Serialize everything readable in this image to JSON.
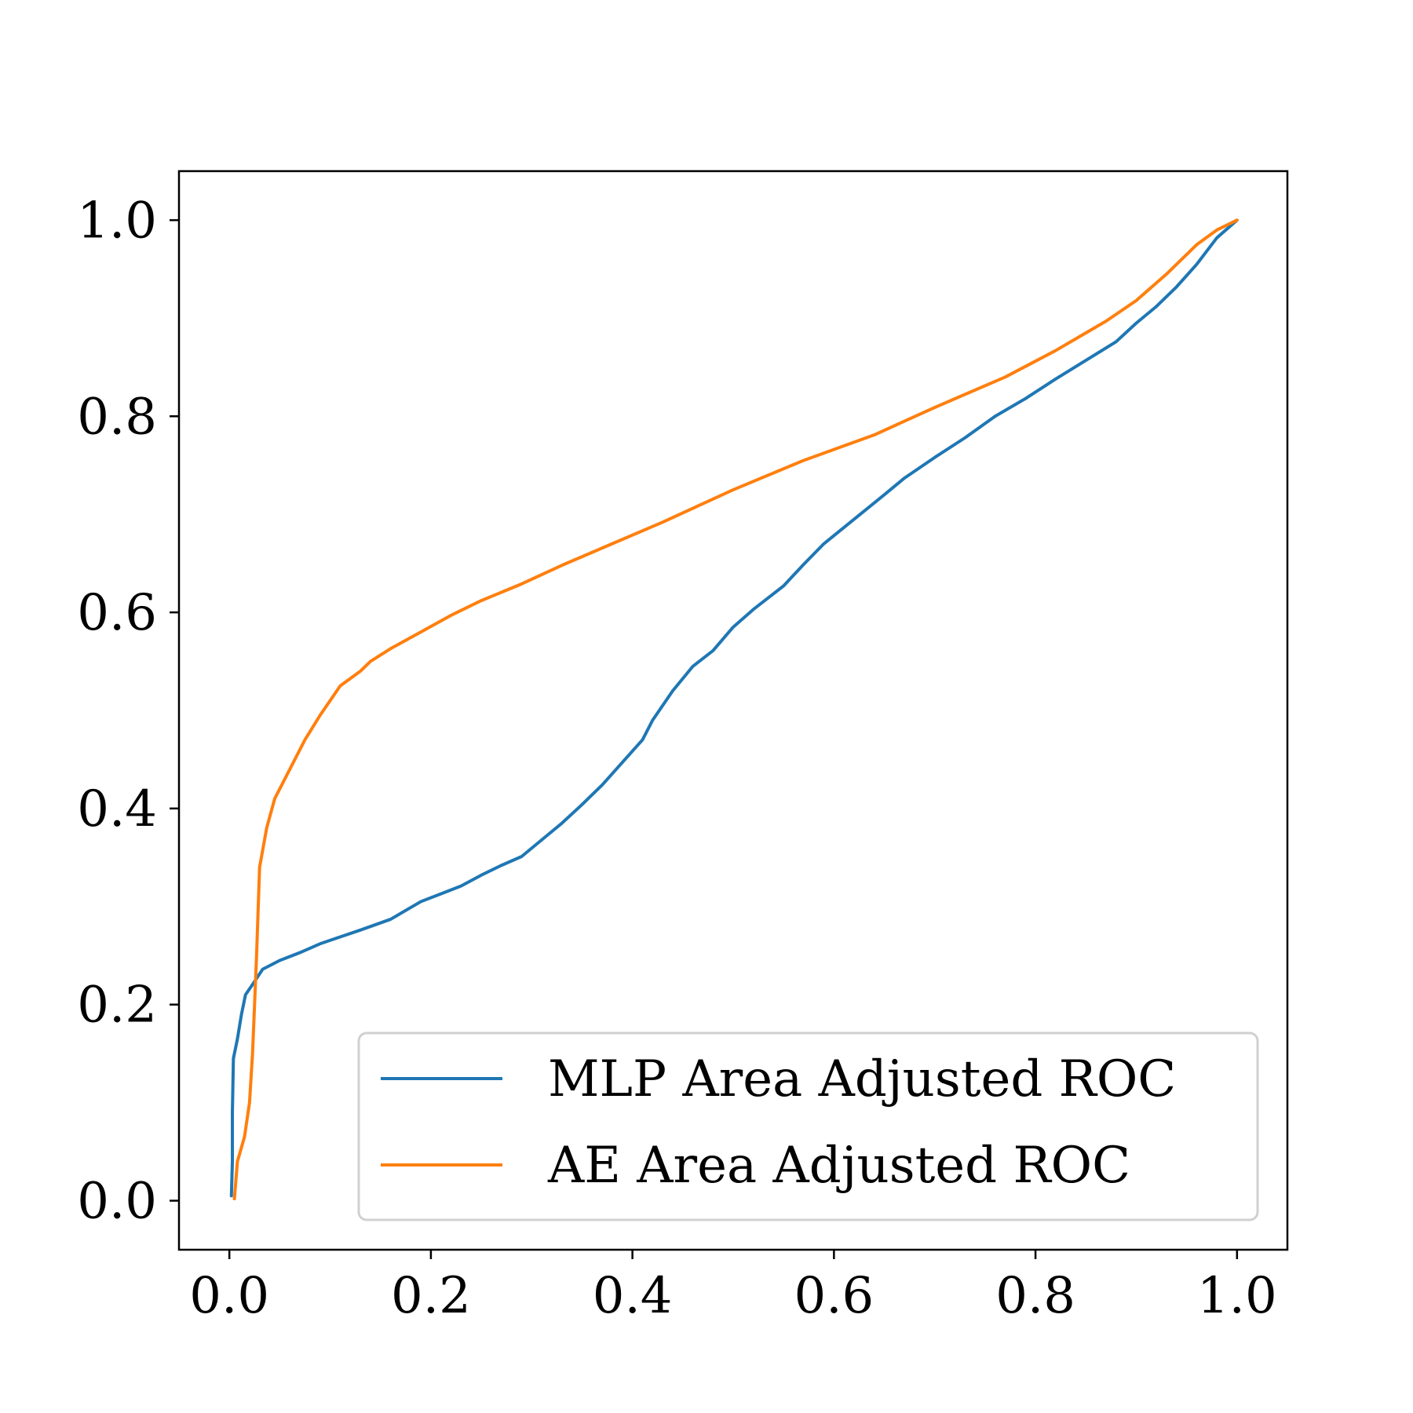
{
  "chart_data": {
    "type": "line",
    "title": "",
    "xlabel": "",
    "ylabel": "",
    "xlim": [
      -0.05,
      1.05
    ],
    "ylim": [
      -0.05,
      1.05
    ],
    "x_ticks": [
      "0.0",
      "0.2",
      "0.4",
      "0.6",
      "0.8",
      "1.0"
    ],
    "y_ticks": [
      "0.0",
      "0.2",
      "0.4",
      "0.6",
      "0.8",
      "1.0"
    ],
    "grid": false,
    "legend_position": "lower-right",
    "series": [
      {
        "name": "MLP Area Adjusted ROC",
        "color": "#1f77b4",
        "points": [
          [
            0.002,
            0.005
          ],
          [
            0.003,
            0.04
          ],
          [
            0.003,
            0.09
          ],
          [
            0.004,
            0.145
          ],
          [
            0.008,
            0.165
          ],
          [
            0.012,
            0.19
          ],
          [
            0.016,
            0.21
          ],
          [
            0.024,
            0.222
          ],
          [
            0.033,
            0.236
          ],
          [
            0.05,
            0.245
          ],
          [
            0.07,
            0.253
          ],
          [
            0.09,
            0.262
          ],
          [
            0.11,
            0.269
          ],
          [
            0.13,
            0.276
          ],
          [
            0.16,
            0.287
          ],
          [
            0.19,
            0.305
          ],
          [
            0.21,
            0.313
          ],
          [
            0.23,
            0.321
          ],
          [
            0.25,
            0.332
          ],
          [
            0.27,
            0.342
          ],
          [
            0.29,
            0.351
          ],
          [
            0.31,
            0.368
          ],
          [
            0.33,
            0.385
          ],
          [
            0.35,
            0.404
          ],
          [
            0.37,
            0.424
          ],
          [
            0.39,
            0.447
          ],
          [
            0.41,
            0.47
          ],
          [
            0.42,
            0.49
          ],
          [
            0.44,
            0.52
          ],
          [
            0.46,
            0.545
          ],
          [
            0.48,
            0.561
          ],
          [
            0.5,
            0.585
          ],
          [
            0.52,
            0.603
          ],
          [
            0.55,
            0.627
          ],
          [
            0.57,
            0.649
          ],
          [
            0.59,
            0.67
          ],
          [
            0.62,
            0.695
          ],
          [
            0.65,
            0.72
          ],
          [
            0.67,
            0.737
          ],
          [
            0.7,
            0.758
          ],
          [
            0.73,
            0.778
          ],
          [
            0.76,
            0.8
          ],
          [
            0.79,
            0.818
          ],
          [
            0.82,
            0.838
          ],
          [
            0.85,
            0.857
          ],
          [
            0.88,
            0.876
          ],
          [
            0.9,
            0.895
          ],
          [
            0.92,
            0.912
          ],
          [
            0.94,
            0.932
          ],
          [
            0.96,
            0.955
          ],
          [
            0.98,
            0.982
          ],
          [
            1.0,
            1.0
          ]
        ]
      },
      {
        "name": "AE Area Adjusted ROC",
        "color": "#ff7f0e",
        "points": [
          [
            0.005,
            0.002
          ],
          [
            0.008,
            0.04
          ],
          [
            0.015,
            0.065
          ],
          [
            0.02,
            0.1
          ],
          [
            0.023,
            0.15
          ],
          [
            0.027,
            0.25
          ],
          [
            0.03,
            0.34
          ],
          [
            0.037,
            0.38
          ],
          [
            0.045,
            0.41
          ],
          [
            0.06,
            0.44
          ],
          [
            0.075,
            0.47
          ],
          [
            0.09,
            0.495
          ],
          [
            0.11,
            0.525
          ],
          [
            0.13,
            0.54
          ],
          [
            0.14,
            0.55
          ],
          [
            0.16,
            0.563
          ],
          [
            0.19,
            0.58
          ],
          [
            0.22,
            0.597
          ],
          [
            0.25,
            0.612
          ],
          [
            0.29,
            0.629
          ],
          [
            0.33,
            0.648
          ],
          [
            0.38,
            0.67
          ],
          [
            0.43,
            0.692
          ],
          [
            0.5,
            0.725
          ],
          [
            0.57,
            0.755
          ],
          [
            0.64,
            0.781
          ],
          [
            0.7,
            0.809
          ],
          [
            0.77,
            0.84
          ],
          [
            0.82,
            0.867
          ],
          [
            0.87,
            0.897
          ],
          [
            0.9,
            0.918
          ],
          [
            0.93,
            0.945
          ],
          [
            0.96,
            0.975
          ],
          [
            0.98,
            0.99
          ],
          [
            1.0,
            1.0
          ]
        ]
      }
    ]
  }
}
